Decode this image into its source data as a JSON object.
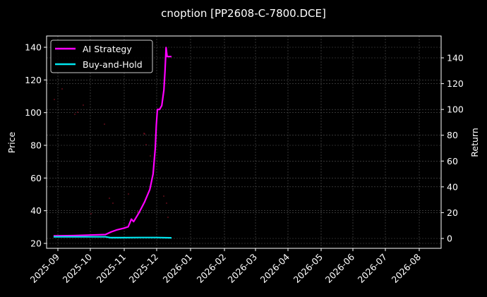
{
  "chart_data": {
    "type": "line",
    "title": "cnoption [PP2608-C-7800.DCE]",
    "xlabel": "",
    "ylabel": "Price",
    "ylabel_right": "Return",
    "x_ticks": [
      "2025-09",
      "2025-10",
      "2025-11",
      "2025-12",
      "2026-01",
      "2026-02",
      "2026-03",
      "2026-04",
      "2026-05",
      "2026-06",
      "2026-07",
      "2026-08"
    ],
    "y_ticks_left": [
      20,
      40,
      60,
      80,
      100,
      120,
      140
    ],
    "y_ticks_right": [
      0,
      20,
      40,
      60,
      80,
      100,
      120,
      140
    ],
    "ylim_left": [
      17,
      147
    ],
    "ylim_right": [
      -7,
      157
    ],
    "grid": true,
    "legend_position": "upper left",
    "legend": [
      "AI Strategy",
      "Buy-and-Hold"
    ],
    "series": [
      {
        "name": "AI Strategy",
        "axis": "right",
        "color": "#ff00ff",
        "x": [
          "2025-08-28",
          "2025-09-15",
          "2025-10-01",
          "2025-10-15",
          "2025-10-20",
          "2025-10-25",
          "2025-11-01",
          "2025-11-05",
          "2025-11-08",
          "2025-11-10",
          "2025-11-15",
          "2025-11-20",
          "2025-11-25",
          "2025-11-28",
          "2025-11-30",
          "2025-12-01",
          "2025-12-02",
          "2025-12-04",
          "2025-12-06",
          "2025-12-08",
          "2025-12-09",
          "2025-12-10",
          "2025-12-11",
          "2025-12-13",
          "2025-12-15"
        ],
        "values": [
          2,
          2.2,
          2.6,
          3,
          5,
          6.5,
          8,
          9,
          15,
          13,
          20,
          28,
          38,
          50,
          70,
          88,
          100,
          100,
          103,
          115,
          130,
          148,
          141,
          141,
          141
        ]
      },
      {
        "name": "Buy-and-Hold",
        "axis": "left",
        "color": "#00e5ee",
        "x": [
          "2025-08-28",
          "2025-09-15",
          "2025-10-01",
          "2025-10-15",
          "2025-10-20",
          "2025-11-01",
          "2025-11-15",
          "2025-12-01",
          "2025-12-15"
        ],
        "values": [
          24,
          24,
          24,
          24,
          23.5,
          23.5,
          23.6,
          23.6,
          23.4
        ]
      }
    ]
  }
}
